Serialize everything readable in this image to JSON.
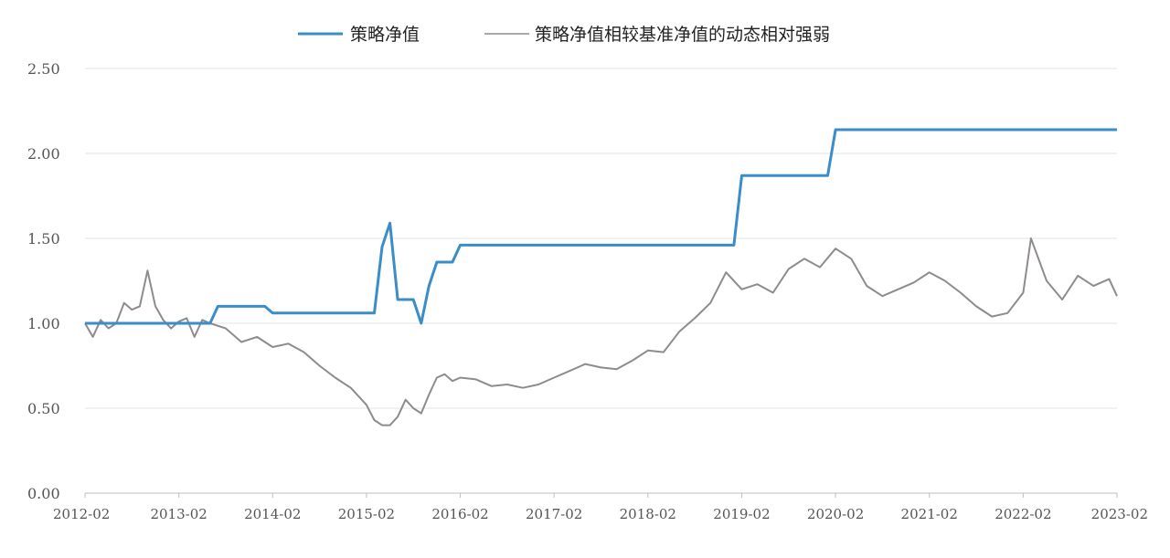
{
  "chart_data": {
    "type": "line",
    "title": "",
    "xlabel": "",
    "ylabel": "",
    "ylim": [
      0,
      2.5
    ],
    "y_ticks": [
      "0.00",
      "0.50",
      "1.00",
      "1.50",
      "2.00",
      "2.50"
    ],
    "x_ticks": [
      "2012-02",
      "2013-02",
      "2014-02",
      "2015-02",
      "2016-02",
      "2017-02",
      "2018-02",
      "2019-02",
      "2020-02",
      "2021-02",
      "2022-02",
      "2023-02"
    ],
    "xlim": [
      "2012-02",
      "2023-02"
    ],
    "grid": "horizontal",
    "legend": "top-center",
    "series": [
      {
        "name": "策略净值",
        "color": "#3a8dc8",
        "points": [
          [
            "2012-02",
            1.0
          ],
          [
            "2012-06",
            1.0
          ],
          [
            "2012-08",
            1.0
          ],
          [
            "2013-03",
            1.0
          ],
          [
            "2013-06",
            1.0
          ],
          [
            "2013-07",
            1.1
          ],
          [
            "2014-01",
            1.1
          ],
          [
            "2014-02",
            1.06
          ],
          [
            "2015-01",
            1.06
          ],
          [
            "2015-03",
            1.06
          ],
          [
            "2015-04",
            1.45
          ],
          [
            "2015-05",
            1.59
          ],
          [
            "2015-06",
            1.14
          ],
          [
            "2015-07",
            1.14
          ],
          [
            "2015-08",
            1.14
          ],
          [
            "2015-09",
            1.0
          ],
          [
            "2015-10",
            1.22
          ],
          [
            "2015-11",
            1.36
          ],
          [
            "2016-01",
            1.36
          ],
          [
            "2016-02",
            1.46
          ],
          [
            "2019-01",
            1.46
          ],
          [
            "2019-02",
            1.87
          ],
          [
            "2020-01",
            1.87
          ],
          [
            "2020-02",
            2.14
          ],
          [
            "2023-02",
            2.14
          ]
        ]
      },
      {
        "name": "策略净值相较基准净值的动态相对强弱",
        "color": "#8f8a8e",
        "points": [
          [
            "2012-02",
            1.0
          ],
          [
            "2012-03",
            0.92
          ],
          [
            "2012-04",
            1.02
          ],
          [
            "2012-05",
            0.97
          ],
          [
            "2012-06",
            1.0
          ],
          [
            "2012-07",
            1.12
          ],
          [
            "2012-08",
            1.08
          ],
          [
            "2012-09",
            1.1
          ],
          [
            "2012-10",
            1.31
          ],
          [
            "2012-11",
            1.1
          ],
          [
            "2012-12",
            1.02
          ],
          [
            "2013-01",
            0.97
          ],
          [
            "2013-02",
            1.01
          ],
          [
            "2013-03",
            1.03
          ],
          [
            "2013-04",
            0.92
          ],
          [
            "2013-05",
            1.02
          ],
          [
            "2013-06",
            1.0
          ],
          [
            "2013-08",
            0.97
          ],
          [
            "2013-10",
            0.89
          ],
          [
            "2013-12",
            0.92
          ],
          [
            "2014-02",
            0.86
          ],
          [
            "2014-04",
            0.88
          ],
          [
            "2014-06",
            0.83
          ],
          [
            "2014-08",
            0.75
          ],
          [
            "2014-10",
            0.68
          ],
          [
            "2014-12",
            0.62
          ],
          [
            "2015-02",
            0.52
          ],
          [
            "2015-03",
            0.43
          ],
          [
            "2015-04",
            0.4
          ],
          [
            "2015-05",
            0.4
          ],
          [
            "2015-06",
            0.45
          ],
          [
            "2015-07",
            0.55
          ],
          [
            "2015-08",
            0.5
          ],
          [
            "2015-09",
            0.47
          ],
          [
            "2015-10",
            0.58
          ],
          [
            "2015-11",
            0.68
          ],
          [
            "2015-12",
            0.7
          ],
          [
            "2016-01",
            0.66
          ],
          [
            "2016-02",
            0.68
          ],
          [
            "2016-04",
            0.67
          ],
          [
            "2016-06",
            0.63
          ],
          [
            "2016-08",
            0.64
          ],
          [
            "2016-10",
            0.62
          ],
          [
            "2016-12",
            0.64
          ],
          [
            "2017-02",
            0.68
          ],
          [
            "2017-04",
            0.72
          ],
          [
            "2017-06",
            0.76
          ],
          [
            "2017-08",
            0.74
          ],
          [
            "2017-10",
            0.73
          ],
          [
            "2017-12",
            0.78
          ],
          [
            "2018-02",
            0.84
          ],
          [
            "2018-04",
            0.83
          ],
          [
            "2018-06",
            0.95
          ],
          [
            "2018-08",
            1.03
          ],
          [
            "2018-10",
            1.12
          ],
          [
            "2018-12",
            1.3
          ],
          [
            "2019-02",
            1.2
          ],
          [
            "2019-04",
            1.23
          ],
          [
            "2019-06",
            1.18
          ],
          [
            "2019-08",
            1.32
          ],
          [
            "2019-10",
            1.38
          ],
          [
            "2019-12",
            1.33
          ],
          [
            "2020-02",
            1.44
          ],
          [
            "2020-04",
            1.38
          ],
          [
            "2020-06",
            1.22
          ],
          [
            "2020-08",
            1.16
          ],
          [
            "2020-10",
            1.2
          ],
          [
            "2020-12",
            1.24
          ],
          [
            "2021-02",
            1.3
          ],
          [
            "2021-04",
            1.25
          ],
          [
            "2021-06",
            1.18
          ],
          [
            "2021-08",
            1.1
          ],
          [
            "2021-10",
            1.04
          ],
          [
            "2021-12",
            1.06
          ],
          [
            "2022-02",
            1.18
          ],
          [
            "2022-03",
            1.5
          ],
          [
            "2022-05",
            1.25
          ],
          [
            "2022-07",
            1.14
          ],
          [
            "2022-09",
            1.28
          ],
          [
            "2022-11",
            1.22
          ],
          [
            "2023-01",
            1.26
          ],
          [
            "2023-02",
            1.16
          ]
        ]
      }
    ]
  }
}
